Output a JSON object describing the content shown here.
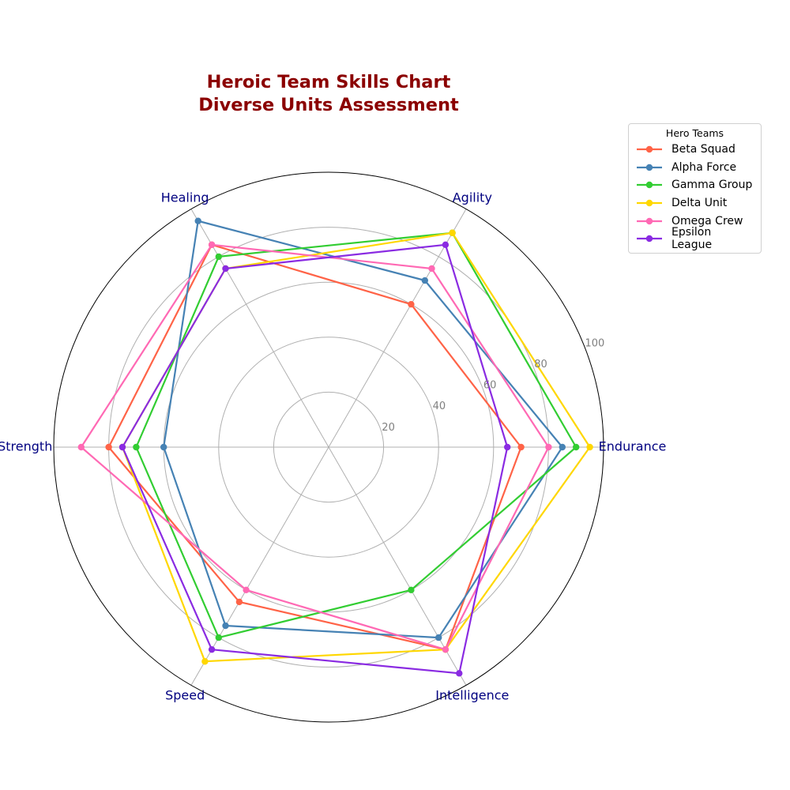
{
  "chart_data": {
    "type": "radar",
    "title": "Heroic Team Skills Chart\nDiverse Units Assessment",
    "categories": [
      "Endurance",
      "Agility",
      "Healing",
      "Strength",
      "Speed",
      "Intelligence"
    ],
    "radial_ticks": [
      20,
      40,
      60,
      80,
      100
    ],
    "rlim": [
      0,
      100
    ],
    "grid": true,
    "legend": {
      "title": "Hero Teams",
      "placement": "upper-right-outside"
    },
    "series": [
      {
        "name": "Beta Squad",
        "color": "#ff6347",
        "values": [
          70,
          60,
          85,
          80,
          65,
          85
        ]
      },
      {
        "name": "Alpha Force",
        "color": "#4682b4",
        "values": [
          85,
          70,
          95,
          60,
          75,
          80
        ]
      },
      {
        "name": "Gamma Group",
        "color": "#32cd32",
        "values": [
          90,
          90,
          80,
          70,
          80,
          60
        ]
      },
      {
        "name": "Delta Unit",
        "color": "#ffd700",
        "values": [
          95,
          90,
          75,
          75,
          90,
          85
        ]
      },
      {
        "name": "Omega Crew",
        "color": "#ff69b4",
        "values": [
          80,
          75,
          85,
          90,
          60,
          85
        ]
      },
      {
        "name": "Epsilon League",
        "color": "#8a2be2",
        "values": [
          65,
          85,
          75,
          75,
          85,
          95
        ]
      }
    ]
  }
}
